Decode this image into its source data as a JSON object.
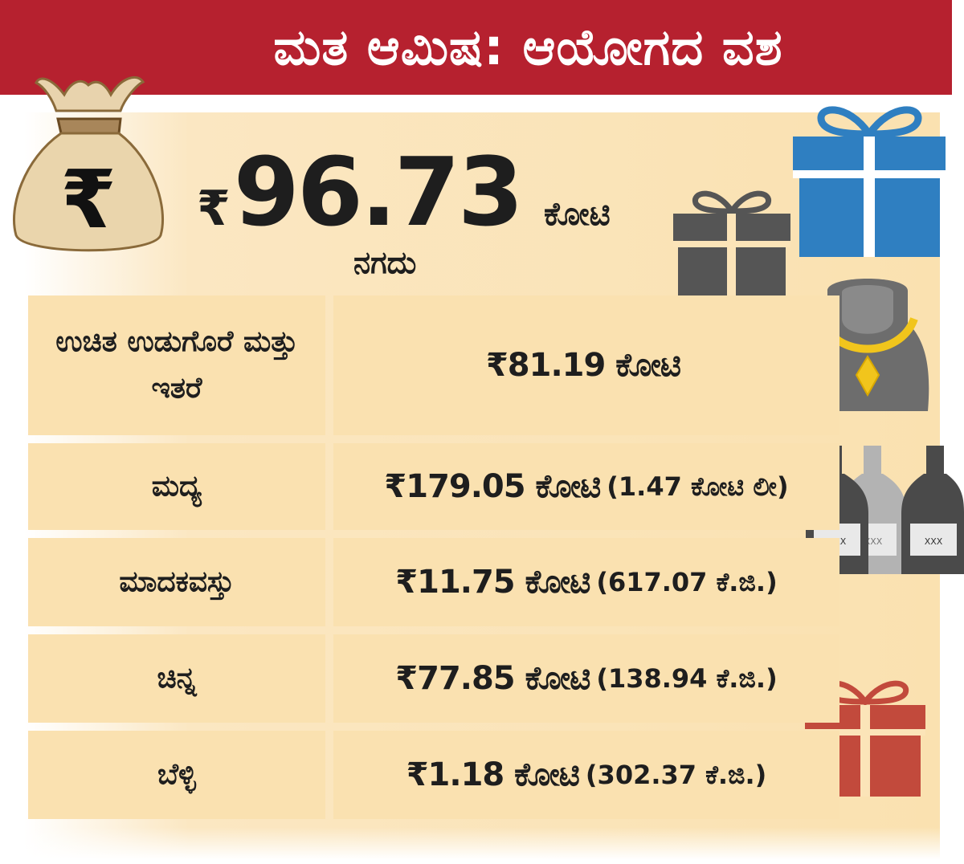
{
  "title": "ಮತ ಆಮಿಷ: ಆಯೋಗದ ವಶ",
  "headline": {
    "currency": "₹",
    "amount": "96.73",
    "unit": "ಕೋಟಿ",
    "label": "ನಗದು"
  },
  "rows": [
    {
      "label": "ಉಚಿತ ಉಡುಗೊರೆ ಮತ್ತು ಇತರೆ",
      "value": "₹81.19 ಕೋಟಿ",
      "extra": ""
    },
    {
      "label": "ಮದ್ಯ",
      "value": "₹179.05 ಕೋಟಿ",
      "extra": "(1.47 ಕೋಟಿ ಲೀ)"
    },
    {
      "label": "ಮಾದಕವಸ್ತು",
      "value": "₹11.75 ಕೋಟಿ",
      "extra": "(617.07 ಕೆ.ಜಿ.)"
    },
    {
      "label": "ಚಿನ್ನ",
      "value": "₹77.85 ಕೋಟಿ",
      "extra": "(138.94 ಕೆ.ಜಿ.)"
    },
    {
      "label": "ಬೆಳ್ಳಿ",
      "value": "₹1.18 ಕೋಟಿ",
      "extra": "(302.37 ಕೆ.ಜಿ.)"
    }
  ],
  "bottle_label": "XXX",
  "icons": [
    "money-bag-icon",
    "blue-gift-icon",
    "grey-gift-icon",
    "necklace-icon",
    "bottles-icon",
    "red-gift-icon"
  ],
  "colors": {
    "title_bar": "#b6212f",
    "panel": "#fae1b0",
    "blue_gift": "#2f7fc1",
    "grey_gift": "#555555",
    "red_gift": "#c24a3c",
    "gold": "#f1c51c"
  }
}
